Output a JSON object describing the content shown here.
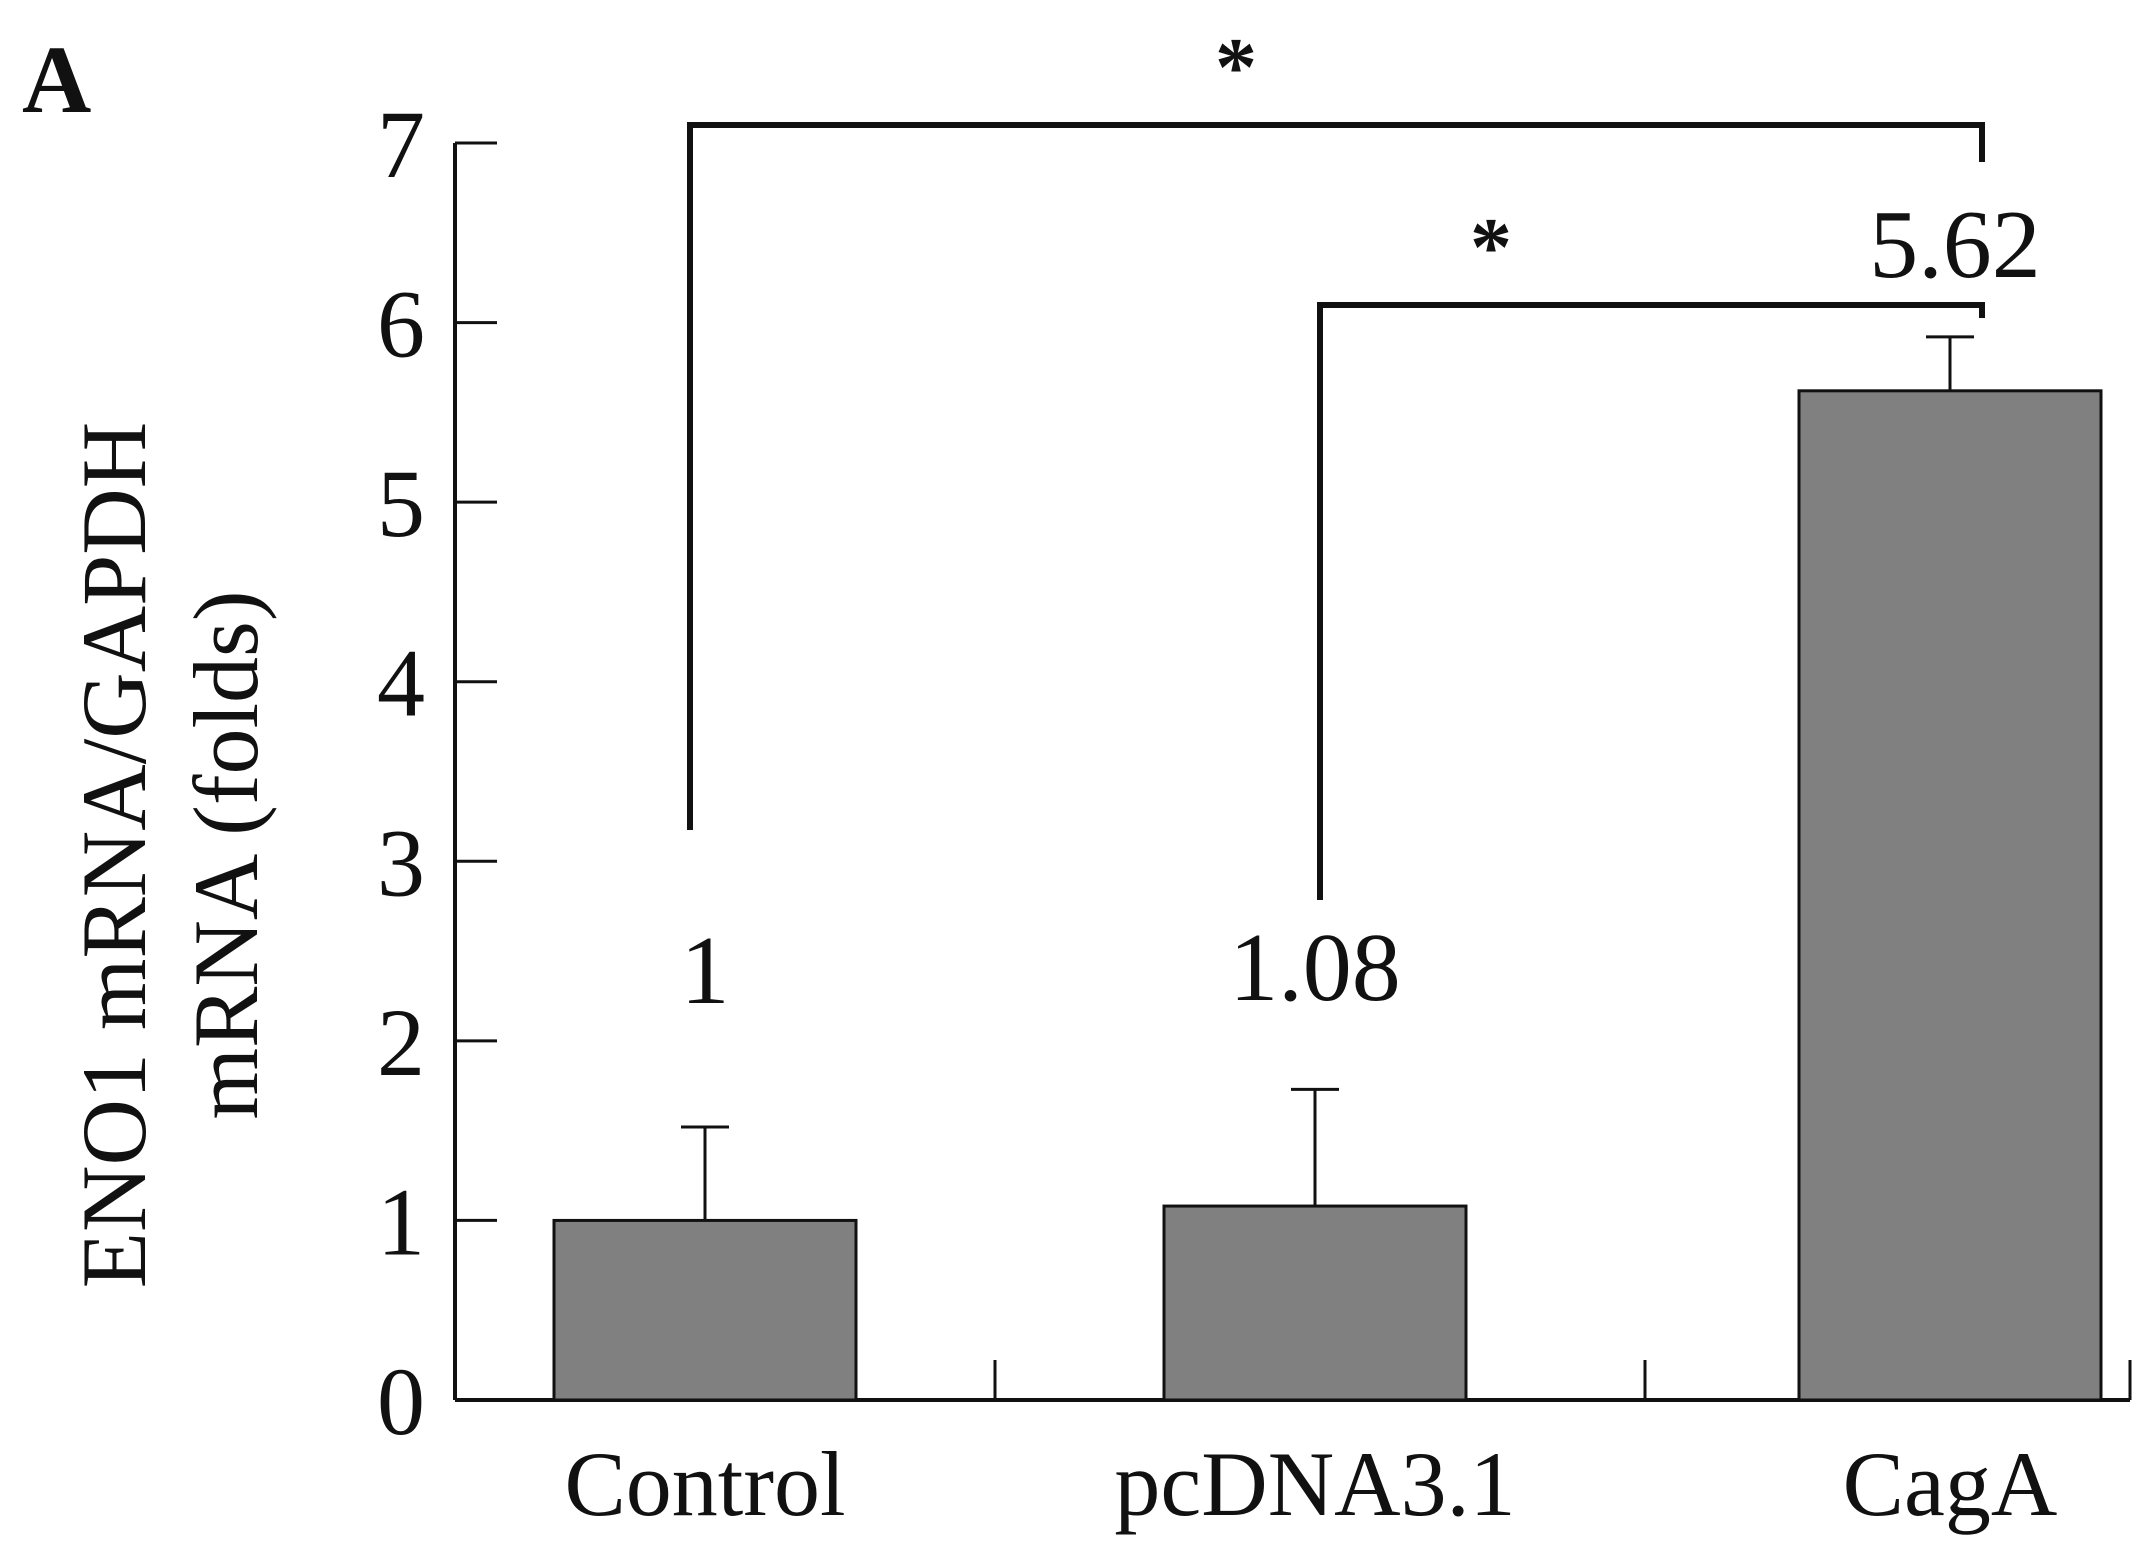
{
  "panel_label": "A",
  "colors": {
    "bar": "#808080",
    "ink": "#111111",
    "background": "#ffffff"
  },
  "chart_data": {
    "type": "bar",
    "title": "",
    "xlabel": "",
    "ylabel_lines": [
      "ENO1 mRNA/GAPDH",
      "mRNA (folds)"
    ],
    "categories": [
      "Control",
      "pcDNA3.1",
      "CagA"
    ],
    "values": [
      1,
      1.08,
      5.62
    ],
    "error_upper": [
      0.52,
      0.65,
      0.3
    ],
    "data_labels": [
      "1",
      "1.08",
      "5.62"
    ],
    "ylim": [
      0,
      7
    ],
    "yticks": [
      0,
      1,
      2,
      3,
      4,
      5,
      6,
      7
    ],
    "ytick_labels": [
      "0",
      "1",
      "2",
      "3",
      "4",
      "5",
      "6",
      "7"
    ],
    "grid": false,
    "legend": "none",
    "significance": [
      {
        "from": "Control",
        "to": "CagA",
        "label": "*"
      },
      {
        "from": "pcDNA3.1",
        "to": "CagA",
        "label": "*"
      }
    ]
  }
}
